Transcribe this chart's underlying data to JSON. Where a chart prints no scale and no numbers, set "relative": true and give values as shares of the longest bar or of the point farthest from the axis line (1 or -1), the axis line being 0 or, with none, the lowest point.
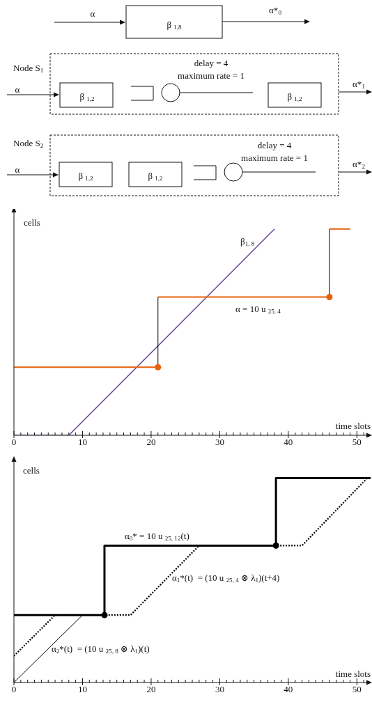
{
  "chart_data": [
    {
      "type": "other",
      "annotations": [
        "α",
        "β $_{1,8}$",
        "α*$_{0}$",
        "Node S$_{1}$",
        "α",
        "β $_{1,2}$",
        "delay = 4",
        "maximum rate = 1",
        "β $_{1,2}$",
        "α*$_{1}$",
        "Node S$_{2}$",
        "α",
        "β $_{1,2}$",
        "β $_{1,2}$",
        "delay = 4",
        "maximum rate = 1",
        "α*$_{2}$"
      ]
    },
    {
      "type": "line",
      "relative": true,
      "xlabel": "time slots",
      "ylabel": "cells",
      "xlim": [
        0,
        52
      ],
      "xticks": [
        0,
        {
          "value": 1,
          "label": null
        },
        {
          "value": 2,
          "label": null
        },
        {
          "value": 3,
          "label": null
        },
        {
          "value": 4,
          "label": null
        },
        {
          "value": 5,
          "label": null
        },
        {
          "value": 6,
          "label": null
        },
        {
          "value": 7,
          "label": null
        },
        {
          "value": 8,
          "label": null
        },
        {
          "value": 9,
          "label": null
        },
        10,
        {
          "value": 11,
          "label": null
        },
        {
          "value": 12,
          "label": null
        },
        {
          "value": 13,
          "label": null
        },
        {
          "value": 14,
          "label": null
        },
        {
          "value": 15,
          "label": null
        },
        {
          "value": 16,
          "label": null
        },
        {
          "value": 17,
          "label": null
        },
        {
          "value": 18,
          "label": null
        },
        {
          "value": 19,
          "label": null
        },
        20,
        {
          "value": 21,
          "label": null
        },
        {
          "value": 22,
          "label": null
        },
        {
          "value": 23,
          "label": null
        },
        {
          "value": 24,
          "label": null
        },
        {
          "value": 25,
          "label": null
        },
        {
          "value": 26,
          "label": null
        },
        {
          "value": 27,
          "label": null
        },
        {
          "value": 28,
          "label": null
        },
        {
          "value": 29,
          "label": null
        },
        30,
        {
          "value": 31,
          "label": null
        },
        {
          "value": 32,
          "label": null
        },
        {
          "value": 33,
          "label": null
        },
        {
          "value": 34,
          "label": null
        },
        {
          "value": 35,
          "label": null
        },
        {
          "value": 36,
          "label": null
        },
        {
          "value": 37,
          "label": null
        },
        {
          "value": 38,
          "label": null
        },
        {
          "value": 39,
          "label": null
        },
        40,
        {
          "value": 41,
          "label": null
        },
        {
          "value": 42,
          "label": null
        },
        {
          "value": 43,
          "label": null
        },
        {
          "value": 44,
          "label": null
        },
        {
          "value": 45,
          "label": null
        },
        {
          "value": 46,
          "label": null
        },
        {
          "value": 47,
          "label": null
        },
        {
          "value": 48,
          "label": null
        },
        {
          "value": 49,
          "label": null
        },
        50,
        {
          "value": 51,
          "label": null
        }
      ],
      "series": [
        {
          "name": "β$_{1, 8}$",
          "type": "line",
          "color": "#6b4f96",
          "x": [
            0,
            8,
            38
          ],
          "values": [
            0,
            0,
            1
          ]
        },
        {
          "name": "α = 10 u $_{25, 4}$",
          "type": "line",
          "color": "#e8600c",
          "x": [
            21,
            46
          ],
          "values": [
            0.67,
            0.67
          ]
        },
        {
          "type": "line",
          "color": "#000000",
          "x": [
            21,
            21
          ],
          "values": [
            0.33,
            0.67
          ]
        },
        {
          "type": "line",
          "color": "#000000",
          "x": [
            46,
            46
          ],
          "values": [
            0.67,
            1
          ]
        },
        {
          "type": "line",
          "color": "#e8600c",
          "x": [
            0,
            21
          ],
          "values": [
            0.33,
            0.33
          ]
        },
        {
          "type": "line",
          "color": "#e8600c",
          "x": [
            46,
            49
          ],
          "values": [
            1,
            1
          ]
        },
        {
          "type": "scatter",
          "marker": "circle",
          "color": "#e8600c",
          "x": [
            21,
            46
          ],
          "values": [
            0.33,
            0.67
          ]
        }
      ]
    },
    {
      "type": "line",
      "relative": true,
      "xlabel": "time slots",
      "ylabel": "cells",
      "xlim": [
        0,
        52
      ],
      "xticks": [
        0,
        {
          "value": 1,
          "label": null
        },
        {
          "value": 2,
          "label": null
        },
        {
          "value": 3,
          "label": null
        },
        {
          "value": 4,
          "label": null
        },
        {
          "value": 5,
          "label": null
        },
        {
          "value": 6,
          "label": null
        },
        {
          "value": 7,
          "label": null
        },
        {
          "value": 8,
          "label": null
        },
        {
          "value": 9,
          "label": null
        },
        10,
        {
          "value": 11,
          "label": null
        },
        {
          "value": 12,
          "label": null
        },
        {
          "value": 13,
          "label": null
        },
        {
          "value": 14,
          "label": null
        },
        {
          "value": 15,
          "label": null
        },
        {
          "value": 16,
          "label": null
        },
        {
          "value": 17,
          "label": null
        },
        {
          "value": 18,
          "label": null
        },
        {
          "value": 19,
          "label": null
        },
        20,
        {
          "value": 21,
          "label": null
        },
        {
          "value": 22,
          "label": null
        },
        {
          "value": 23,
          "label": null
        },
        {
          "value": 24,
          "label": null
        },
        {
          "value": 25,
          "label": null
        },
        {
          "value": 26,
          "label": null
        },
        {
          "value": 27,
          "label": null
        },
        {
          "value": 28,
          "label": null
        },
        {
          "value": 29,
          "label": null
        },
        30,
        {
          "value": 31,
          "label": null
        },
        {
          "value": 32,
          "label": null
        },
        {
          "value": 33,
          "label": null
        },
        {
          "value": 34,
          "label": null
        },
        {
          "value": 35,
          "label": null
        },
        {
          "value": 36,
          "label": null
        },
        {
          "value": 37,
          "label": null
        },
        {
          "value": 38,
          "label": null
        },
        {
          "value": 39,
          "label": null
        },
        40,
        {
          "value": 41,
          "label": null
        },
        {
          "value": 42,
          "label": null
        },
        {
          "value": 43,
          "label": null
        },
        {
          "value": 44,
          "label": null
        },
        {
          "value": 45,
          "label": null
        },
        {
          "value": 46,
          "label": null
        },
        {
          "value": 47,
          "label": null
        },
        {
          "value": 48,
          "label": null
        },
        {
          "value": 49,
          "label": null
        },
        50,
        {
          "value": 51,
          "label": null
        }
      ],
      "series": [
        {
          "name": "α$_{0}$* = 10 u $_{25, 12}$(t)",
          "type": "step",
          "color": "#000000",
          "x": [
            0,
            13.2,
            38.2,
            52
          ],
          "values": [
            0.33,
            0.67,
            1,
            1
          ]
        },
        {
          "type": "scatter",
          "marker": "circle",
          "color": "#000000",
          "x": [
            13.2,
            38.2
          ],
          "values": [
            0.33,
            0.67
          ]
        },
        {
          "name": "α$_{1}$*(t)  = (10 u $_{25, 4}$ ⊗ λ$_{1}$)(t+4)",
          "type": "line",
          "line_style": "dotted",
          "color": "#000000",
          "x": [
            0,
            6,
            17,
            27,
            42,
            51.5
          ],
          "values": [
            0.13,
            0.33,
            0.33,
            0.67,
            0.67,
            1
          ]
        },
        {
          "name": "α$_{2}$*(t)  = (10 u $_{25, 8}$ ⊗ λ$_{1}$)(t)",
          "type": "line",
          "color": "#000000",
          "x": [
            0,
            10
          ],
          "values": [
            0,
            0.33
          ]
        }
      ]
    }
  ]
}
